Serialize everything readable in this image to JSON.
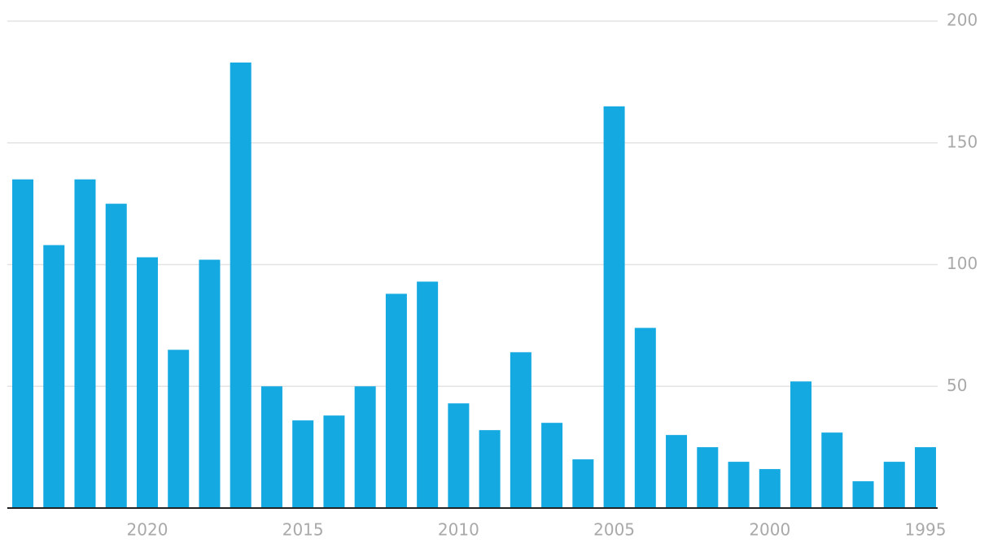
{
  "chart_data": {
    "type": "bar",
    "categories": [
      "2024",
      "2023",
      "2022",
      "2021",
      "2020",
      "2019",
      "2018",
      "2017",
      "2016",
      "2015",
      "2014",
      "2013",
      "2012",
      "2011",
      "2010",
      "2009",
      "2008",
      "2007",
      "2006",
      "2005",
      "2004",
      "2003",
      "2002",
      "2001",
      "2000",
      "1999",
      "1998",
      "1997",
      "1996",
      "1995"
    ],
    "tick_labels": [
      null,
      null,
      null,
      null,
      "2020",
      null,
      null,
      null,
      null,
      "2015",
      null,
      null,
      null,
      null,
      "2010",
      null,
      null,
      null,
      null,
      "2005",
      null,
      null,
      null,
      null,
      "2000",
      null,
      null,
      null,
      null,
      "1995"
    ],
    "values": [
      135,
      108,
      135,
      125,
      103,
      65,
      102,
      183,
      50,
      36,
      38,
      50,
      88,
      93,
      43,
      32,
      64,
      35,
      20,
      165,
      74,
      30,
      25,
      19,
      16,
      52,
      31,
      11,
      19,
      25
    ],
    "color": "#14a9e1",
    "ylim": [
      0,
      200
    ],
    "yticks": [
      50,
      100,
      150,
      200
    ],
    "grid": true
  }
}
